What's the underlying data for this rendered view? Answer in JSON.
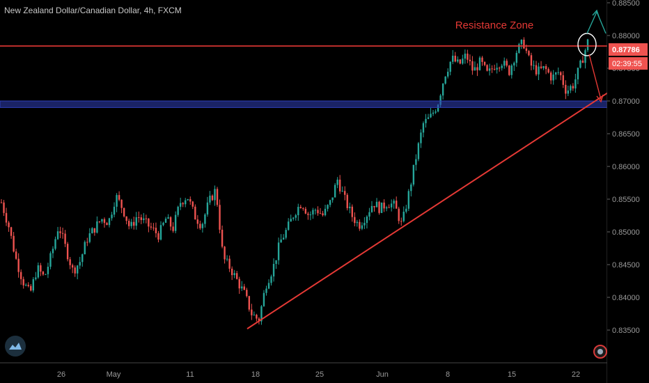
{
  "header": {
    "title": "New Zealand Dollar/Canadian Dollar, 4h, FXCM"
  },
  "chart_data": {
    "type": "candlestick",
    "symbol": "NZDCAD",
    "timeframe": "4h",
    "ylim": [
      0.8305,
      0.8855
    ],
    "grid": false,
    "y_ticks": [
      "0.88500",
      "0.88000",
      "0.87500",
      "0.87000",
      "0.86500",
      "0.86000",
      "0.85500",
      "0.85000",
      "0.84500",
      "0.84000",
      "0.83500"
    ],
    "x_ticks": [
      "26",
      "May",
      "11",
      "18",
      "25",
      "Jun",
      "8",
      "15",
      "22"
    ],
    "last_price": "0.87786",
    "countdown": "02:39:55",
    "annotations": {
      "resistance_label": "Resistance Zone",
      "resistance_level": 0.8784,
      "support_zone": [
        0.869,
        0.87
      ],
      "trendline_start": [
        0.8352
      ],
      "trendline_end": [
        0.8712
      ]
    },
    "colors": {
      "up": "#26a69a",
      "down": "#ef5350",
      "resistance": "#e53935",
      "support": "#2f3fb8",
      "arrow_up": "#26a69a",
      "arrow_down": "#e53935"
    },
    "price_path": [
      0.8545,
      0.851,
      0.846,
      0.8425,
      0.8405,
      0.8445,
      0.843,
      0.8465,
      0.851,
      0.8475,
      0.844,
      0.8455,
      0.849,
      0.8505,
      0.852,
      0.8515,
      0.8555,
      0.8535,
      0.8505,
      0.8525,
      0.8515,
      0.8505,
      0.8495,
      0.852,
      0.8505,
      0.8545,
      0.8555,
      0.8525,
      0.851,
      0.8545,
      0.8565,
      0.846,
      0.8445,
      0.8425,
      0.8405,
      0.8375,
      0.8365,
      0.842,
      0.8445,
      0.8485,
      0.8505,
      0.853,
      0.8545,
      0.8525,
      0.8535,
      0.8525,
      0.8545,
      0.858,
      0.855,
      0.8525,
      0.851,
      0.8525,
      0.8545,
      0.8535,
      0.8545,
      0.854,
      0.851,
      0.856,
      0.8615,
      0.8665,
      0.8675,
      0.8695,
      0.874,
      0.8765,
      0.8755,
      0.877,
      0.8745,
      0.876,
      0.874,
      0.8755,
      0.876,
      0.8745,
      0.8775,
      0.879,
      0.8755,
      0.8745,
      0.875,
      0.8735,
      0.8745,
      0.8715,
      0.8725,
      0.8755,
      0.879
    ]
  }
}
